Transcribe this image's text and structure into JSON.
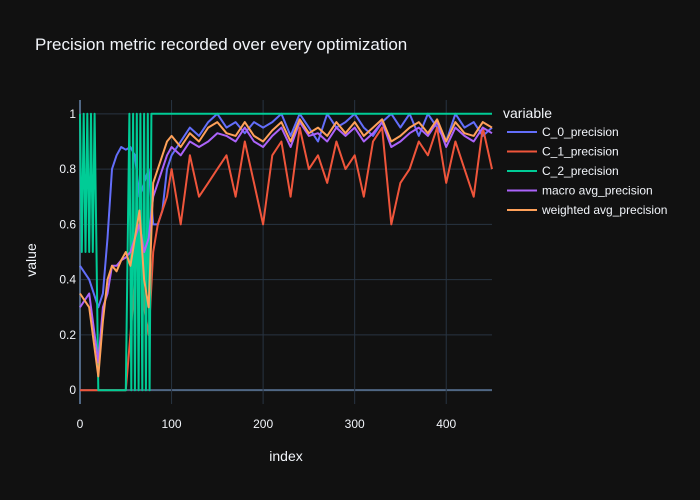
{
  "chart_data": {
    "type": "line",
    "title": "Precision metric recorded over every optimization",
    "xlabel": "index",
    "ylabel": "value",
    "xlim": [
      0,
      450
    ],
    "ylim": [
      -0.05,
      1.05
    ],
    "x_ticks": [
      0,
      100,
      200,
      300,
      400
    ],
    "y_ticks": [
      0,
      0.2,
      0.4,
      0.6,
      0.8,
      1
    ],
    "y_tick_labels": [
      "0",
      "0.2",
      "0.4",
      "0.6",
      "0.8",
      "1"
    ],
    "grid": true,
    "legend_title": "variable",
    "legend_position": "right",
    "background": "#111111",
    "series": [
      {
        "name": "C_0_precision",
        "color": "#636efa",
        "x": [
          0,
          10,
          20,
          25,
          30,
          35,
          40,
          45,
          50,
          55,
          60,
          65,
          70,
          75,
          80,
          85,
          90,
          95,
          100,
          110,
          120,
          130,
          140,
          150,
          160,
          170,
          180,
          190,
          200,
          210,
          220,
          230,
          240,
          250,
          260,
          270,
          280,
          290,
          300,
          310,
          320,
          330,
          340,
          350,
          360,
          370,
          380,
          390,
          400,
          410,
          420,
          430,
          440,
          450
        ],
        "values": [
          0.45,
          0.4,
          0.3,
          0.35,
          0.55,
          0.8,
          0.85,
          0.88,
          0.87,
          0.88,
          0.85,
          0.7,
          0.75,
          0.8,
          0.6,
          0.6,
          0.65,
          0.8,
          0.85,
          0.9,
          0.95,
          0.92,
          0.97,
          1.0,
          0.95,
          0.97,
          0.93,
          0.97,
          0.95,
          0.97,
          1.0,
          0.92,
          1.0,
          0.95,
          0.9,
          1.0,
          0.95,
          0.97,
          1.0,
          0.95,
          0.92,
          0.97,
          1.0,
          0.95,
          1.0,
          0.92,
          1.0,
          0.95,
          0.9,
          1.0,
          0.95,
          0.97,
          0.92,
          0.95
        ]
      },
      {
        "name": "C_1_precision",
        "color": "#ef553b",
        "x": [
          0,
          10,
          20,
          25,
          30,
          35,
          40,
          45,
          50,
          55,
          60,
          65,
          70,
          75,
          80,
          85,
          90,
          95,
          100,
          110,
          120,
          130,
          140,
          150,
          160,
          170,
          180,
          190,
          200,
          210,
          220,
          230,
          240,
          250,
          260,
          270,
          280,
          290,
          300,
          310,
          320,
          330,
          340,
          350,
          360,
          370,
          380,
          390,
          400,
          410,
          420,
          430,
          440,
          450
        ],
        "values": [
          0.0,
          0.0,
          0.0,
          0.0,
          0.0,
          0.0,
          0.0,
          0.0,
          0.0,
          0.2,
          0.4,
          0.6,
          0.3,
          0.2,
          0.5,
          0.6,
          0.65,
          0.7,
          0.8,
          0.6,
          0.85,
          0.7,
          0.75,
          0.8,
          0.85,
          0.7,
          0.9,
          0.75,
          0.6,
          0.85,
          0.9,
          0.7,
          0.95,
          0.8,
          0.85,
          0.75,
          0.9,
          0.8,
          0.85,
          0.7,
          0.9,
          0.95,
          0.6,
          0.75,
          0.8,
          0.9,
          0.85,
          0.95,
          0.75,
          0.9,
          0.8,
          0.7,
          0.95,
          0.8
        ]
      },
      {
        "name": "C_2_precision",
        "color": "#00cc96",
        "x": [
          0,
          2,
          4,
          6,
          8,
          10,
          12,
          14,
          16,
          18,
          20,
          25,
          30,
          35,
          40,
          45,
          50,
          54,
          56,
          58,
          60,
          62,
          64,
          66,
          68,
          70,
          72,
          74,
          76,
          78,
          80,
          85,
          90,
          95,
          100,
          450
        ],
        "values": [
          1.0,
          0.5,
          1.0,
          0.5,
          1.0,
          0.5,
          1.0,
          0.5,
          1.0,
          0.5,
          0.0,
          0.0,
          0.0,
          0.0,
          0.0,
          0.0,
          0.0,
          1.0,
          0.0,
          1.0,
          0.0,
          1.0,
          0.0,
          1.0,
          0.0,
          1.0,
          0.0,
          1.0,
          0.0,
          1.0,
          1.0,
          1.0,
          1.0,
          1.0,
          1.0,
          1.0
        ]
      },
      {
        "name": "macro avg_precision",
        "color": "#ab63fa",
        "x": [
          0,
          10,
          20,
          25,
          30,
          35,
          40,
          45,
          50,
          55,
          60,
          65,
          70,
          75,
          80,
          85,
          90,
          95,
          100,
          110,
          120,
          130,
          140,
          150,
          160,
          170,
          180,
          190,
          200,
          210,
          220,
          230,
          240,
          250,
          260,
          270,
          280,
          290,
          300,
          310,
          320,
          330,
          340,
          350,
          360,
          370,
          380,
          390,
          400,
          410,
          420,
          430,
          440,
          450
        ],
        "values": [
          0.3,
          0.35,
          0.1,
          0.3,
          0.35,
          0.45,
          0.45,
          0.47,
          0.48,
          0.5,
          0.55,
          0.6,
          0.5,
          0.55,
          0.7,
          0.75,
          0.8,
          0.85,
          0.88,
          0.85,
          0.9,
          0.88,
          0.9,
          0.93,
          0.92,
          0.9,
          0.95,
          0.9,
          0.88,
          0.92,
          0.95,
          0.88,
          0.97,
          0.92,
          0.93,
          0.9,
          0.95,
          0.92,
          0.95,
          0.9,
          0.93,
          0.97,
          0.88,
          0.9,
          0.93,
          0.95,
          0.92,
          0.97,
          0.88,
          0.95,
          0.92,
          0.9,
          0.95,
          0.93
        ]
      },
      {
        "name": "weighted avg_precision",
        "color": "#ffa15a",
        "x": [
          0,
          10,
          20,
          25,
          30,
          35,
          40,
          45,
          50,
          55,
          60,
          65,
          70,
          75,
          80,
          85,
          90,
          95,
          100,
          110,
          120,
          130,
          140,
          150,
          160,
          170,
          180,
          190,
          200,
          210,
          220,
          230,
          240,
          250,
          260,
          270,
          280,
          290,
          300,
          310,
          320,
          330,
          340,
          350,
          360,
          370,
          380,
          390,
          400,
          410,
          420,
          430,
          440,
          450
        ],
        "values": [
          0.35,
          0.3,
          0.05,
          0.25,
          0.4,
          0.45,
          0.43,
          0.47,
          0.5,
          0.45,
          0.55,
          0.65,
          0.4,
          0.3,
          0.75,
          0.8,
          0.85,
          0.9,
          0.92,
          0.88,
          0.93,
          0.9,
          0.95,
          0.97,
          0.93,
          0.92,
          0.97,
          0.92,
          0.9,
          0.94,
          0.97,
          0.9,
          0.98,
          0.93,
          0.95,
          0.92,
          0.97,
          0.93,
          0.97,
          0.92,
          0.95,
          0.98,
          0.9,
          0.92,
          0.95,
          0.97,
          0.93,
          0.98,
          0.9,
          0.97,
          0.93,
          0.92,
          0.97,
          0.95
        ]
      }
    ]
  }
}
